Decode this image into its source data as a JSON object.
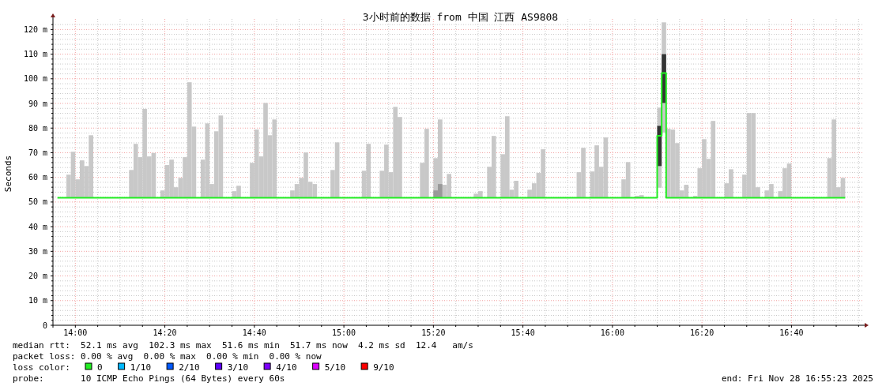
{
  "chart_data": {
    "type": "bar",
    "title": "3小时前的数据 from 中国 江西 AS9808",
    "ylabel": "Seconds",
    "xlim": [
      "2025-11-28T13:55",
      "2025-11-28T16:56"
    ],
    "xticks": [
      {
        "value": "2025-11-28T14:00",
        "label": "14:00"
      },
      {
        "value": "2025-11-28T14:05",
        "label": null
      },
      {
        "value": "2025-11-28T14:10",
        "label": null
      },
      {
        "value": "2025-11-28T14:15",
        "label": null
      },
      {
        "value": "2025-11-28T14:20",
        "label": "14:20"
      },
      {
        "value": "2025-11-28T14:25",
        "label": null
      },
      {
        "value": "2025-11-28T14:30",
        "label": null
      },
      {
        "value": "2025-11-28T14:35",
        "label": null
      },
      {
        "value": "2025-11-28T14:40",
        "label": "14:40"
      },
      {
        "value": "2025-11-28T14:45",
        "label": null
      },
      {
        "value": "2025-11-28T14:50",
        "label": null
      },
      {
        "value": "2025-11-28T14:55",
        "label": null
      },
      {
        "value": "2025-11-28T15:00",
        "label": "15:00"
      },
      {
        "value": "2025-11-28T15:05",
        "label": null
      },
      {
        "value": "2025-11-28T15:10",
        "label": null
      },
      {
        "value": "2025-11-28T15:15",
        "label": null
      },
      {
        "value": "2025-11-28T15:20",
        "label": "15:20"
      },
      {
        "value": "2025-11-28T15:25",
        "label": null
      },
      {
        "value": "2025-11-28T15:30",
        "label": null
      },
      {
        "value": "2025-11-28T15:35",
        "label": null
      },
      {
        "value": "2025-11-28T15:40",
        "label": "15:40"
      },
      {
        "value": "2025-11-28T15:45",
        "label": null
      },
      {
        "value": "2025-11-28T15:50",
        "label": null
      },
      {
        "value": "2025-11-28T15:55",
        "label": null
      },
      {
        "value": "2025-11-28T16:00",
        "label": "16:00"
      },
      {
        "value": "2025-11-28T16:05",
        "label": null
      },
      {
        "value": "2025-11-28T16:10",
        "label": null
      },
      {
        "value": "2025-11-28T16:15",
        "label": null
      },
      {
        "value": "2025-11-28T16:20",
        "label": "16:20"
      },
      {
        "value": "2025-11-28T16:25",
        "label": null
      },
      {
        "value": "2025-11-28T16:30",
        "label": null
      },
      {
        "value": "2025-11-28T16:35",
        "label": null
      },
      {
        "value": "2025-11-28T16:40",
        "label": "16:40"
      },
      {
        "value": "2025-11-28T16:45",
        "label": null
      },
      {
        "value": "2025-11-28T16:50",
        "label": null
      },
      {
        "value": "2025-11-28T16:55",
        "label": null
      }
    ],
    "ylim": [
      0,
      123
    ],
    "yticks": [
      0,
      {
        "value": 2,
        "label": null
      },
      {
        "value": 4,
        "label": null
      },
      {
        "value": 6,
        "label": null
      },
      {
        "value": 8,
        "label": null
      },
      {
        "value": 10,
        "label": "10 m"
      },
      {
        "value": 12,
        "label": null
      },
      {
        "value": 14,
        "label": null
      },
      {
        "value": 16,
        "label": null
      },
      {
        "value": 18,
        "label": null
      },
      {
        "value": 20,
        "label": "20 m"
      },
      {
        "value": 22,
        "label": null
      },
      {
        "value": 24,
        "label": null
      },
      {
        "value": 26,
        "label": null
      },
      {
        "value": 28,
        "label": null
      },
      {
        "value": 30,
        "label": "30 m"
      },
      {
        "value": 32,
        "label": null
      },
      {
        "value": 34,
        "label": null
      },
      {
        "value": 36,
        "label": null
      },
      {
        "value": 38,
        "label": null
      },
      {
        "value": 40,
        "label": "40 m"
      },
      {
        "value": 42,
        "label": null
      },
      {
        "value": 44,
        "label": null
      },
      {
        "value": 46,
        "label": null
      },
      {
        "value": 48,
        "label": null
      },
      {
        "value": 50,
        "label": "50 m"
      },
      {
        "value": 52,
        "label": null
      },
      {
        "value": 54,
        "label": null
      },
      {
        "value": 56,
        "label": null
      },
      {
        "value": 58,
        "label": null
      },
      {
        "value": 60,
        "label": "60 m"
      },
      {
        "value": 62,
        "label": null
      },
      {
        "value": 64,
        "label": null
      },
      {
        "value": 66,
        "label": null
      },
      {
        "value": 68,
        "label": null
      },
      {
        "value": 70,
        "label": "70 m"
      },
      {
        "value": 72,
        "label": null
      },
      {
        "value": 74,
        "label": null
      },
      {
        "value": 76,
        "label": null
      },
      {
        "value": 78,
        "label": null
      },
      {
        "value": 80,
        "label": "80 m"
      },
      {
        "value": 82,
        "label": null
      },
      {
        "value": 84,
        "label": null
      },
      {
        "value": 86,
        "label": null
      },
      {
        "value": 88,
        "label": null
      },
      {
        "value": 90,
        "label": "90 m"
      },
      {
        "value": 92,
        "label": null
      },
      {
        "value": 94,
        "label": null
      },
      {
        "value": 96,
        "label": null
      },
      {
        "value": 98,
        "label": null
      },
      {
        "value": 100,
        "label": "100 m"
      },
      {
        "value": 102,
        "label": null
      },
      {
        "value": 104,
        "label": null
      },
      {
        "value": 106,
        "label": null
      },
      {
        "value": 108,
        "label": null
      },
      {
        "value": 110,
        "label": "110 m"
      },
      {
        "value": 112,
        "label": null
      },
      {
        "value": 114,
        "label": null
      },
      {
        "value": 116,
        "label": null
      },
      {
        "value": 118,
        "label": null
      },
      {
        "value": 120,
        "label": "120 m"
      },
      {
        "value": 122,
        "label": null
      }
    ],
    "grid": true,
    "legend": "bottom left",
    "legend_title": "loss color:",
    "series": [
      {
        "color": "#c8c8c8",
        "x": [
          "2025-11-28T13:58",
          "2025-11-28T13:59",
          "2025-11-28T14:00",
          "2025-11-28T14:01",
          "2025-11-28T14:02",
          "2025-11-28T14:03",
          "2025-11-28T14:12",
          "2025-11-28T14:13",
          "2025-11-28T14:14",
          "2025-11-28T14:15",
          "2025-11-28T14:16",
          "2025-11-28T14:17",
          "2025-11-28T14:19",
          "2025-11-28T14:20",
          "2025-11-28T14:21",
          "2025-11-28T14:22",
          "2025-11-28T14:23",
          "2025-11-28T14:24",
          "2025-11-28T14:25",
          "2025-11-28T14:26",
          "2025-11-28T14:28",
          "2025-11-28T14:29",
          "2025-11-28T14:30",
          "2025-11-28T14:31",
          "2025-11-28T14:32",
          "2025-11-28T14:35",
          "2025-11-28T14:36",
          "2025-11-28T14:39",
          "2025-11-28T14:40",
          "2025-11-28T14:41",
          "2025-11-28T14:42",
          "2025-11-28T14:43",
          "2025-11-28T14:44",
          "2025-11-28T14:48",
          "2025-11-28T14:49",
          "2025-11-28T14:50",
          "2025-11-28T14:51",
          "2025-11-28T14:52",
          "2025-11-28T14:53",
          "2025-11-28T14:57",
          "2025-11-28T14:58",
          "2025-11-28T15:04",
          "2025-11-28T15:05",
          "2025-11-28T15:08",
          "2025-11-28T15:09",
          "2025-11-28T15:10",
          "2025-11-28T15:11",
          "2025-11-28T15:12",
          "2025-11-28T15:17",
          "2025-11-28T15:18",
          "2025-11-28T15:20",
          "2025-11-28T15:21",
          "2025-11-28T15:22",
          "2025-11-28T15:23",
          "2025-11-28T15:29",
          "2025-11-28T15:30",
          "2025-11-28T15:32",
          "2025-11-28T15:33",
          "2025-11-28T15:35",
          "2025-11-28T15:36",
          "2025-11-28T15:37",
          "2025-11-28T15:38",
          "2025-11-28T15:41",
          "2025-11-28T15:42",
          "2025-11-28T15:43",
          "2025-11-28T15:44",
          "2025-11-28T15:52",
          "2025-11-28T15:53",
          "2025-11-28T15:55",
          "2025-11-28T15:56",
          "2025-11-28T15:57",
          "2025-11-28T15:58",
          "2025-11-28T16:02",
          "2025-11-28T16:03",
          "2025-11-28T16:05",
          "2025-11-28T16:06",
          "2025-11-28T16:10",
          "2025-11-28T16:11",
          "2025-11-28T16:12",
          "2025-11-28T16:13",
          "2025-11-28T16:14",
          "2025-11-28T16:15",
          "2025-11-28T16:16",
          "2025-11-28T16:18",
          "2025-11-28T16:19",
          "2025-11-28T16:20",
          "2025-11-28T16:21",
          "2025-11-28T16:22",
          "2025-11-28T16:25",
          "2025-11-28T16:26",
          "2025-11-28T16:29",
          "2025-11-28T16:30",
          "2025-11-28T16:31",
          "2025-11-28T16:32",
          "2025-11-28T16:34",
          "2025-11-28T16:35",
          "2025-11-28T16:37",
          "2025-11-28T16:38",
          "2025-11-28T16:39",
          "2025-11-28T16:48",
          "2025-11-28T16:49",
          "2025-11-28T16:50",
          "2025-11-28T16:51"
        ],
        "base": [
          51.7,
          51.7,
          51.7,
          51.7,
          51.7,
          51.7,
          51.7,
          51.7,
          51.7,
          51.7,
          51.7,
          51.7,
          51.7,
          51.7,
          51.7,
          51.7,
          51.7,
          51.7,
          51.7,
          51.7,
          51.7,
          51.7,
          51.7,
          51.7,
          51.7,
          51.7,
          51.7,
          51.7,
          51.7,
          51.7,
          51.7,
          51.7,
          51.7,
          51.7,
          51.7,
          51.7,
          51.7,
          51.7,
          51.7,
          51.7,
          51.7,
          51.7,
          51.7,
          51.7,
          51.7,
          51.7,
          51.7,
          51.7,
          51.7,
          51.7,
          51.7,
          51.7,
          51.7,
          51.7,
          51.7,
          51.7,
          51.7,
          51.7,
          51.7,
          51.7,
          51.7,
          51.7,
          51.7,
          51.7,
          51.7,
          51.7,
          51.7,
          51.7,
          51.7,
          51.7,
          51.7,
          51.7,
          51.7,
          51.7,
          51.7,
          51.7,
          55.8,
          78.2,
          51.7,
          51.7,
          51.7,
          51.7,
          51.7,
          51.7,
          51.7,
          51.7,
          51.7,
          51.7,
          51.7,
          51.7,
          51.7,
          51.7,
          51.7,
          51.7,
          51.7,
          51.7,
          51.7,
          51.7,
          51.7,
          51.7,
          51.7,
          51.7,
          51.7
        ],
        "values": [
          9.4,
          18.7,
          7.5,
          15.2,
          12.9,
          25.4,
          11.3,
          21.9,
          16.5,
          36.1,
          16.8,
          18.2,
          3.0,
          13.3,
          15.5,
          4.3,
          8.1,
          16.5,
          46.9,
          28.9,
          15.5,
          30.2,
          5.6,
          27.0,
          33.4,
          2.7,
          4.9,
          14.2,
          27.7,
          16.8,
          38.5,
          25.4,
          31.8,
          3.0,
          5.6,
          8.1,
          18.4,
          6.5,
          5.6,
          11.3,
          22.5,
          11.0,
          21.9,
          11.0,
          21.6,
          10.4,
          36.9,
          32.8,
          14.2,
          28.0,
          16.1,
          31.8,
          5.3,
          9.7,
          1.7,
          2.7,
          12.6,
          25.1,
          17.7,
          33.1,
          3.3,
          6.9,
          3.3,
          5.9,
          10.1,
          19.7,
          10.4,
          20.3,
          10.7,
          21.3,
          12.6,
          24.5,
          7.5,
          14.5,
          0.8,
          1.1,
          32.5,
          44.7,
          28.0,
          27.7,
          22.2,
          3.0,
          5.3,
          0.8,
          12.0,
          23.8,
          15.8,
          31.2,
          5.9,
          11.6,
          9.4,
          34.4,
          34.4,
          4.3,
          3.0,
          5.6,
          2.7,
          12.0,
          13.9,
          16.1,
          31.8,
          4.3,
          8.1
        ]
      },
      {
        "type": "bar",
        "color": "#999999",
        "x": [
          "2025-11-28T15:20",
          "2025-11-28T15:21"
        ],
        "base": [
          51.7,
          51.7
        ],
        "values": [
          3.0,
          5.6
        ]
      },
      {
        "type": "bar",
        "color": "#333333",
        "x": [
          "2025-11-28T16:10",
          "2025-11-28T16:11"
        ],
        "base": [
          64.6,
          90.2
        ],
        "values": [
          16.3,
          19.8
        ]
      },
      {
        "type": "step",
        "name": "0",
        "color": "#22ee22",
        "line_style": "solid",
        "x": [
          "2025-11-28T13:56",
          "2025-11-28T16:10",
          "2025-11-28T16:11",
          "2025-11-28T16:12",
          "2025-11-28T16:52"
        ],
        "values": [
          51.7,
          76.9,
          102.3,
          51.7,
          51.7
        ]
      },
      {
        "type": "step",
        "name": "1/10",
        "color": "#00b8ff"
      },
      {
        "type": "step",
        "name": "2/10",
        "color": "#0059ff"
      },
      {
        "type": "step",
        "name": "3/10",
        "color": "#5e00ff"
      },
      {
        "type": "step",
        "name": "4/10",
        "color": "#7e00ff"
      },
      {
        "type": "step",
        "name": "5/10",
        "color": "#dd00ff"
      },
      {
        "type": "step",
        "name": "9/10",
        "color": "#ff0000"
      }
    ],
    "annotations": [
      "median rtt:  52.1 ms avg  102.3 ms max  51.6 ms min  51.7 ms now  4.2 ms sd  12.4   am/s",
      "packet loss: 0.00 % avg  0.00 % max  0.00 % min  0.00 % now",
      "probe:       10 ICMP Echo Pings (64 Bytes) every 60s",
      "end: Fri Nov 28 16:55:23 2025"
    ]
  }
}
